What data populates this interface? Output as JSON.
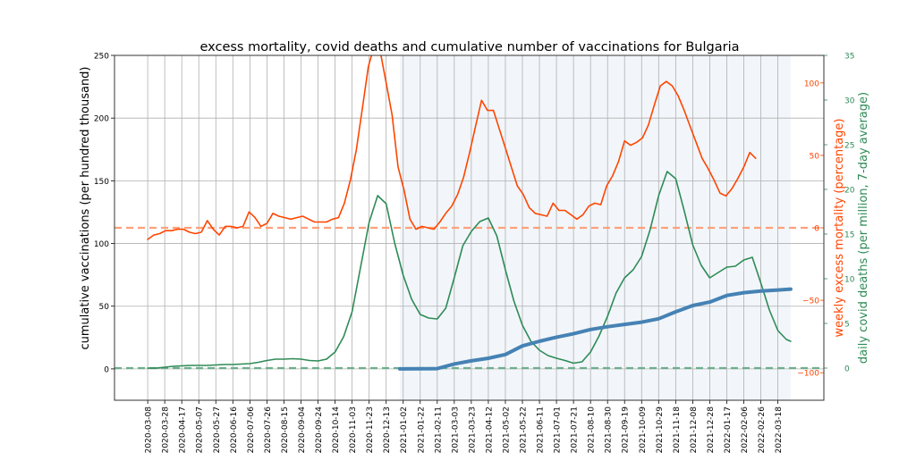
{
  "chart_data": {
    "type": "line",
    "title": "excess mortality, covid deaths and cumulative number of vaccinations for Bulgaria",
    "xlabel": "",
    "x_tick_labels": [
      "2020-03-08",
      "2020-03-28",
      "2020-04-17",
      "2020-05-07",
      "2020-05-27",
      "2020-06-16",
      "2020-07-06",
      "2020-07-26",
      "2020-08-15",
      "2020-09-04",
      "2020-09-24",
      "2020-10-14",
      "2020-11-03",
      "2020-11-23",
      "2020-12-13",
      "2021-01-02",
      "2021-01-22",
      "2021-02-11",
      "2021-03-03",
      "2021-03-23",
      "2021-04-12",
      "2021-05-02",
      "2021-05-22",
      "2021-06-11",
      "2021-07-01",
      "2021-07-21",
      "2021-08-10",
      "2021-08-30",
      "2021-09-19",
      "2021-10-09",
      "2021-10-29",
      "2021-11-18",
      "2021-12-08",
      "2021-12-28",
      "2022-01-17",
      "2022-02-06",
      "2022-02-26",
      "2022-03-18"
    ],
    "xlim": [
      "2020-01-29",
      "2022-05-11"
    ],
    "grid": true,
    "shaded_range": [
      "2020-12-29",
      "2022-04-02"
    ],
    "shade_color": "#f2f6fa",
    "axes": {
      "left": {
        "label": "cumulative vaccinations (per hundred thousand)",
        "ylim": [
          -25,
          250
        ],
        "ticks": [
          0,
          50,
          100,
          150,
          200,
          250
        ],
        "color": "#000000"
      },
      "right_excess": {
        "label": "weekly excess mortality (percentage)",
        "ylim": [
          -119,
          119
        ],
        "ticks": [
          -100,
          -50,
          0,
          50,
          100
        ],
        "color": "#ff4500"
      },
      "right_deaths": {
        "label": "daily covid deaths (per million, 7-day average)",
        "ylim": [
          -3.6,
          35
        ],
        "ticks": [
          0,
          5,
          10,
          15,
          20,
          25,
          30,
          35
        ],
        "color": "#2e8b57"
      }
    },
    "reference_lines": [
      {
        "axis": "right_excess",
        "y": 0,
        "style": "dashed",
        "color": "#ffa07a"
      },
      {
        "axis": "right_deaths",
        "y": 0,
        "style": "dashed",
        "color": "#6fae8c"
      }
    ],
    "series": [
      {
        "axis": "right_excess",
        "color": "#ff4500",
        "x": [
          "2020-03-08",
          "2020-03-15",
          "2020-03-22",
          "2020-03-29",
          "2020-04-05",
          "2020-04-12",
          "2020-04-19",
          "2020-04-26",
          "2020-05-03",
          "2020-05-10",
          "2020-05-17",
          "2020-05-24",
          "2020-05-31",
          "2020-06-07",
          "2020-06-14",
          "2020-06-21",
          "2020-06-28",
          "2020-07-05",
          "2020-07-12",
          "2020-07-19",
          "2020-07-26",
          "2020-08-02",
          "2020-08-09",
          "2020-08-16",
          "2020-08-23",
          "2020-08-30",
          "2020-09-06",
          "2020-09-13",
          "2020-09-20",
          "2020-09-27",
          "2020-10-04",
          "2020-10-11",
          "2020-10-18",
          "2020-10-25",
          "2020-11-01",
          "2020-11-08",
          "2020-11-15",
          "2020-11-22",
          "2020-11-29",
          "2020-12-06",
          "2020-12-13",
          "2020-12-20",
          "2020-12-27",
          "2021-01-03",
          "2021-01-10",
          "2021-01-17",
          "2021-01-24",
          "2021-01-31",
          "2021-02-07",
          "2021-02-14",
          "2021-02-21",
          "2021-02-28",
          "2021-03-07",
          "2021-03-14",
          "2021-03-21",
          "2021-03-28",
          "2021-04-04",
          "2021-04-11",
          "2021-04-18",
          "2021-04-25",
          "2021-05-02",
          "2021-05-09",
          "2021-05-16",
          "2021-05-23",
          "2021-05-30",
          "2021-06-06",
          "2021-06-13",
          "2021-06-20",
          "2021-06-27",
          "2021-07-04",
          "2021-07-11",
          "2021-07-18",
          "2021-07-25",
          "2021-08-01",
          "2021-08-08",
          "2021-08-15",
          "2021-08-22",
          "2021-08-29",
          "2021-09-05",
          "2021-09-12",
          "2021-09-19",
          "2021-09-26",
          "2021-10-03",
          "2021-10-10",
          "2021-10-17",
          "2021-10-24",
          "2021-10-31",
          "2021-11-07",
          "2021-11-14",
          "2021-11-21",
          "2021-11-28",
          "2021-12-05",
          "2021-12-12",
          "2021-12-19",
          "2021-12-26",
          "2022-01-02",
          "2022-01-09",
          "2022-01-16",
          "2022-01-23",
          "2022-01-30",
          "2022-02-06",
          "2022-02-13",
          "2022-02-20"
        ],
        "values": [
          -8,
          -5,
          -4,
          -2,
          -2,
          -1,
          -1,
          -3,
          -4,
          -3,
          5,
          -1,
          -5,
          1,
          1,
          0,
          1,
          11,
          7,
          1,
          3,
          10,
          8,
          7,
          6,
          7,
          8,
          6,
          4,
          4,
          4,
          6,
          7,
          17,
          33,
          54,
          82,
          111,
          126,
          122,
          100,
          78,
          42,
          26,
          6,
          -1,
          1,
          0,
          -1,
          4,
          10,
          15,
          23,
          35,
          52,
          70,
          88,
          81,
          81,
          68,
          55,
          42,
          29,
          23,
          14,
          10,
          9,
          8,
          17,
          12,
          12,
          9,
          6,
          9,
          15,
          17,
          16,
          29,
          36,
          46,
          60,
          57,
          59,
          62,
          71,
          85,
          98,
          101,
          98,
          91,
          81,
          70,
          59,
          48,
          41,
          33,
          24,
          22,
          27,
          34,
          42,
          52,
          48
        ]
      },
      {
        "axis": "right_deaths",
        "color": "#2e8b57",
        "x": [
          "2020-03-08",
          "2020-03-18",
          "2020-03-28",
          "2020-04-07",
          "2020-04-17",
          "2020-04-27",
          "2020-05-07",
          "2020-05-17",
          "2020-05-27",
          "2020-06-06",
          "2020-06-16",
          "2020-06-26",
          "2020-07-06",
          "2020-07-16",
          "2020-07-26",
          "2020-08-05",
          "2020-08-15",
          "2020-08-25",
          "2020-09-04",
          "2020-09-14",
          "2020-09-24",
          "2020-10-04",
          "2020-10-14",
          "2020-10-24",
          "2020-11-03",
          "2020-11-13",
          "2020-11-23",
          "2020-12-03",
          "2020-12-13",
          "2020-12-23",
          "2021-01-02",
          "2021-01-12",
          "2021-01-22",
          "2021-02-01",
          "2021-02-11",
          "2021-02-21",
          "2021-03-03",
          "2021-03-13",
          "2021-03-23",
          "2021-04-02",
          "2021-04-12",
          "2021-04-22",
          "2021-05-02",
          "2021-05-12",
          "2021-05-22",
          "2021-06-01",
          "2021-06-11",
          "2021-06-21",
          "2021-07-01",
          "2021-07-11",
          "2021-07-21",
          "2021-07-31",
          "2021-08-10",
          "2021-08-20",
          "2021-08-30",
          "2021-09-09",
          "2021-09-19",
          "2021-09-29",
          "2021-10-09",
          "2021-10-19",
          "2021-10-29",
          "2021-11-08",
          "2021-11-18",
          "2021-11-28",
          "2021-12-08",
          "2021-12-18",
          "2021-12-28",
          "2022-01-07",
          "2022-01-17",
          "2022-01-27",
          "2022-02-06",
          "2022-02-16",
          "2022-02-26",
          "2022-03-08",
          "2022-03-18",
          "2022-03-28",
          "2022-04-02"
        ],
        "values": [
          0,
          0,
          0.1,
          0.2,
          0.25,
          0.3,
          0.3,
          0.3,
          0.35,
          0.4,
          0.4,
          0.45,
          0.5,
          0.65,
          0.85,
          1.0,
          1.0,
          1.05,
          1.0,
          0.85,
          0.8,
          1.0,
          1.8,
          3.5,
          6.3,
          11.3,
          16.3,
          19.3,
          18.4,
          14.0,
          10.4,
          7.7,
          6.0,
          5.6,
          5.5,
          6.7,
          10.1,
          13.7,
          15.3,
          16.4,
          16.8,
          14.8,
          11.0,
          7.5,
          4.8,
          3.0,
          2.0,
          1.4,
          1.1,
          0.85,
          0.55,
          0.7,
          1.8,
          3.6,
          5.8,
          8.4,
          10.1,
          11.0,
          12.5,
          15.5,
          19.3,
          22.0,
          21.2,
          17.6,
          13.8,
          11.5,
          10.1,
          10.7,
          11.3,
          11.4,
          12.1,
          12.4,
          9.5,
          6.5,
          4.2,
          3.2,
          3.0
        ]
      },
      {
        "axis": "left",
        "color": "#4682b4",
        "x": [
          "2020-12-29",
          "2021-01-02",
          "2021-01-22",
          "2021-02-11",
          "2021-03-03",
          "2021-03-23",
          "2021-04-12",
          "2021-05-02",
          "2021-05-22",
          "2021-06-11",
          "2021-07-01",
          "2021-07-21",
          "2021-08-10",
          "2021-08-30",
          "2021-09-19",
          "2021-10-09",
          "2021-10-29",
          "2021-11-18",
          "2021-12-08",
          "2021-12-28",
          "2022-01-17",
          "2022-02-06",
          "2022-02-26",
          "2022-03-18",
          "2022-04-02"
        ],
        "values": [
          0,
          0,
          0.1,
          0.2,
          3.9,
          6.4,
          8.5,
          11.5,
          18.3,
          22,
          25.3,
          28,
          31.4,
          33.6,
          35.5,
          37.3,
          40,
          45.5,
          50.5,
          53.3,
          58.6,
          60.8,
          62.1,
          62.9,
          63.6
        ]
      }
    ]
  }
}
